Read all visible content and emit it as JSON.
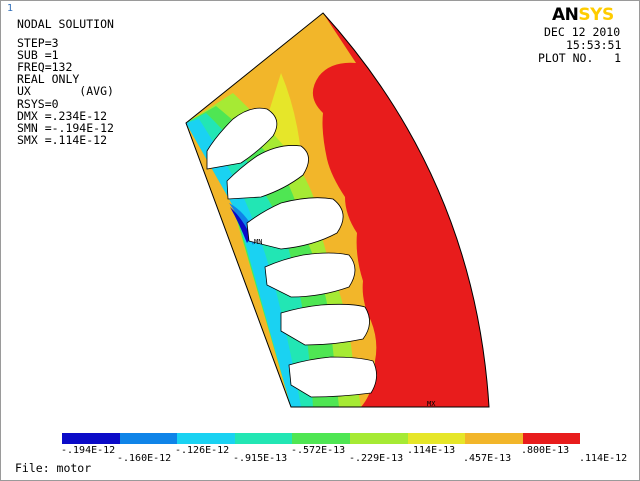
{
  "window": {
    "corner_index": "1",
    "logo_part1": "AN",
    "logo_part2": "SYS",
    "date": "DEC 12 2010",
    "time": "15:53:51",
    "plot_number": "PLOT NO.   1",
    "file_label": "File: motor"
  },
  "solution_info": [
    "NODAL SOLUTION",
    "",
    "STEP=3",
    "SUB =1",
    "FREQ=132",
    "REAL ONLY",
    "UX       (AVG)",
    "RSYS=0",
    "DMX =.234E-12",
    "SMN =-.194E-12",
    "SMX =.114E-12"
  ],
  "node_labels": {
    "min_marker": "MN",
    "max_marker": "MX"
  },
  "legend": {
    "colors": [
      "#0b0bc8",
      "#0f84e8",
      "#1ad2f2",
      "#22e6b4",
      "#4fe653",
      "#a6ea34",
      "#e6e629",
      "#f2b62a",
      "#e81c1c"
    ],
    "labels": [
      "-.194E-12",
      "-.160E-12",
      "-.126E-12",
      "-.915E-13",
      "-.572E-13",
      "-.229E-13",
      ".114E-13",
      ".457E-13",
      ".800E-13",
      ".114E-12"
    ]
  },
  "contour_colors": {
    "red": "#e81c1c",
    "orange": "#f2b62a",
    "yellow": "#e6e629",
    "yellow_green": "#a6ea34",
    "green": "#4fe653",
    "cyan_green": "#22e6b4",
    "cyan": "#1ad2f2",
    "light_blue": "#0f84e8",
    "dark_blue": "#0b0bc8",
    "slot": "#ffffff"
  }
}
